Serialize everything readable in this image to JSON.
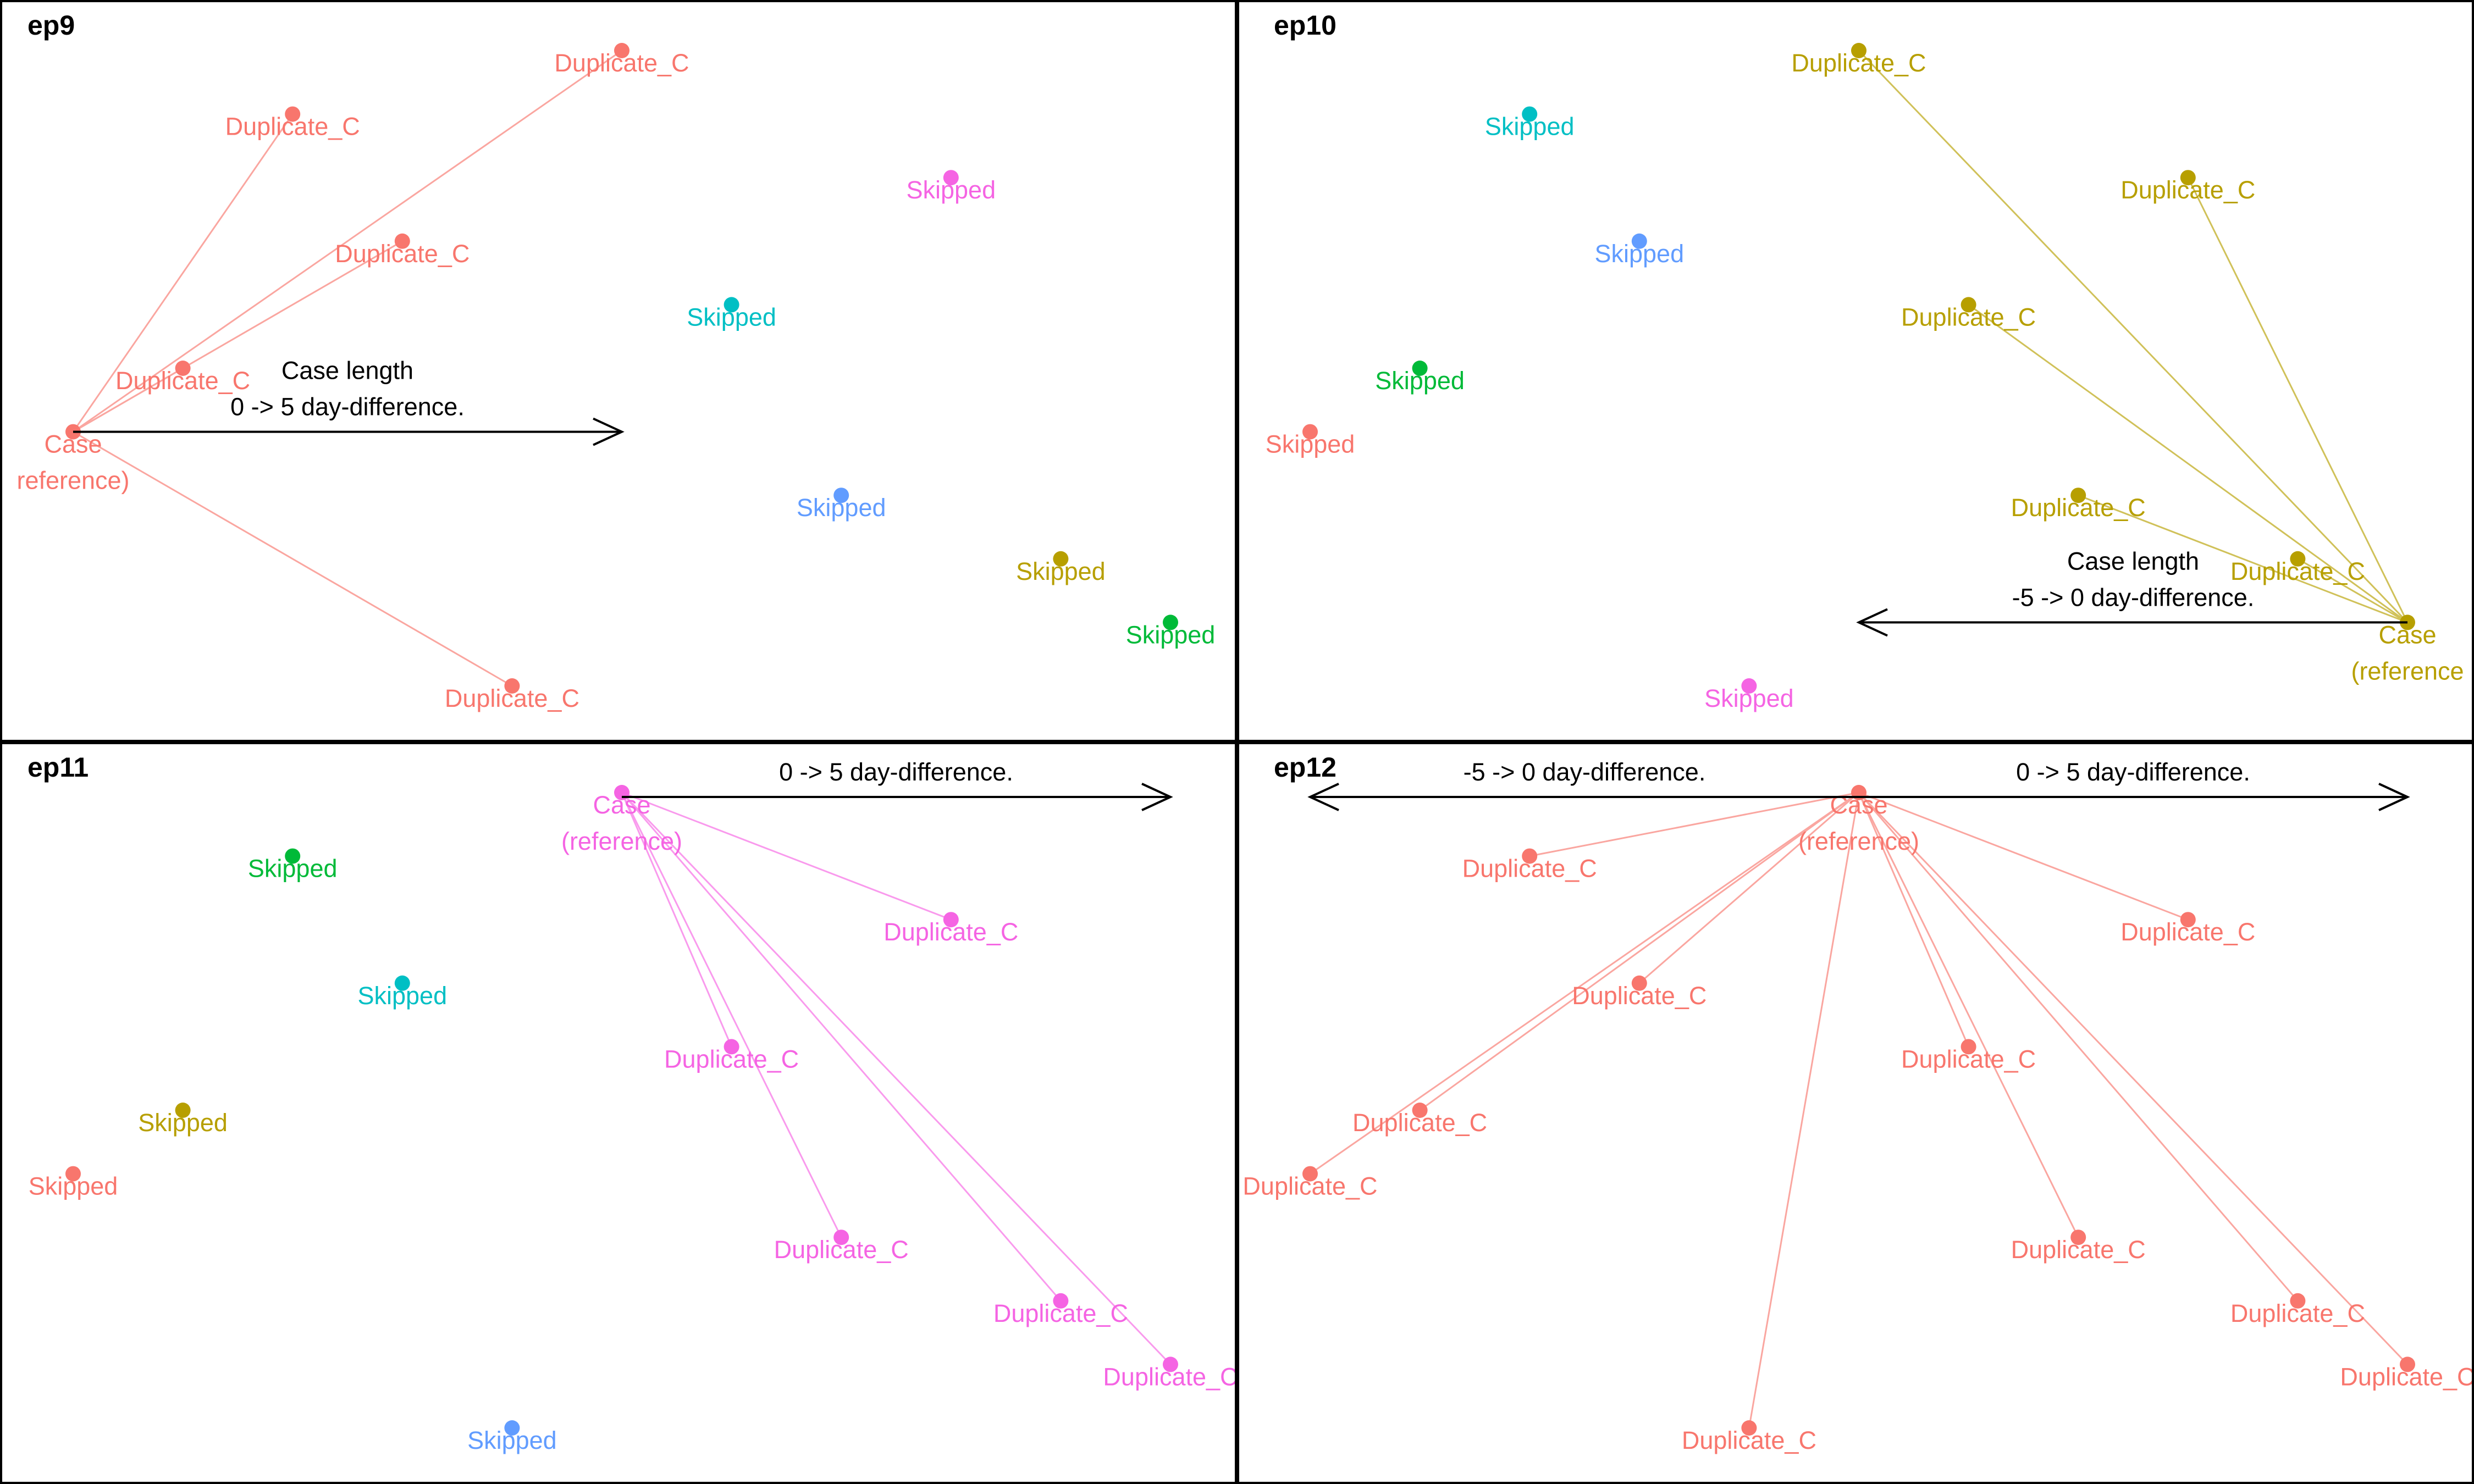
{
  "colors": {
    "salmon": "#F8766D",
    "olive": "#B79F00",
    "green": "#00BA38",
    "cyan": "#00BFC4",
    "blue": "#619CFF",
    "magenta": "#F564E3"
  },
  "panels": [
    {
      "id": "ep9",
      "title": "ep9",
      "reference": "p0",
      "points": [
        {
          "id": "p0",
          "gx": 0,
          "gy": 6,
          "color": "salmon",
          "label": "Case\nreference)"
        },
        {
          "id": "p1",
          "gx": 1,
          "gy": 5,
          "color": "salmon",
          "label": "Duplicate_C"
        },
        {
          "id": "p2",
          "gx": 2,
          "gy": 1,
          "color": "salmon",
          "label": "Duplicate_C"
        },
        {
          "id": "p3",
          "gx": 3,
          "gy": 3,
          "color": "salmon",
          "label": "Duplicate_C"
        },
        {
          "id": "p4",
          "gx": 4,
          "gy": 10,
          "color": "salmon",
          "label": "Duplicate_C"
        },
        {
          "id": "p5",
          "gx": 5,
          "gy": 0,
          "color": "salmon",
          "label": "Duplicate_C"
        },
        {
          "id": "p6",
          "gx": 6,
          "gy": 4,
          "color": "cyan",
          "label": "Skipped"
        },
        {
          "id": "p7",
          "gx": 7,
          "gy": 7,
          "color": "blue",
          "label": "Skipped"
        },
        {
          "id": "p8",
          "gx": 8,
          "gy": 2,
          "color": "magenta",
          "label": "Skipped"
        },
        {
          "id": "p9",
          "gx": 9,
          "gy": 8,
          "color": "olive",
          "label": "Skipped"
        },
        {
          "id": "p10",
          "gx": 10,
          "gy": 9,
          "color": "green",
          "label": "Skipped"
        }
      ],
      "links": [
        "p1",
        "p2",
        "p3",
        "p4",
        "p5"
      ],
      "arrows": [
        {
          "from_gx": 0,
          "to_gx": 5,
          "gy": 6,
          "lines": [
            "Case length",
            "0 -> 5 day-difference."
          ]
        }
      ]
    },
    {
      "id": "ep10",
      "title": "ep10",
      "reference": "q10",
      "points": [
        {
          "id": "q0",
          "gx": 0,
          "gy": 6,
          "color": "salmon",
          "label": "Skipped"
        },
        {
          "id": "q1",
          "gx": 1,
          "gy": 5,
          "color": "green",
          "label": "Skipped"
        },
        {
          "id": "q2",
          "gx": 2,
          "gy": 1,
          "color": "cyan",
          "label": "Skipped"
        },
        {
          "id": "q3",
          "gx": 3,
          "gy": 3,
          "color": "blue",
          "label": "Skipped"
        },
        {
          "id": "q4",
          "gx": 4,
          "gy": 10,
          "color": "magenta",
          "label": "Skipped"
        },
        {
          "id": "q5",
          "gx": 5,
          "gy": 0,
          "color": "olive",
          "label": "Duplicate_C"
        },
        {
          "id": "q6",
          "gx": 6,
          "gy": 4,
          "color": "olive",
          "label": "Duplicate_C"
        },
        {
          "id": "q7",
          "gx": 7,
          "gy": 7,
          "color": "olive",
          "label": "Duplicate_C"
        },
        {
          "id": "q8",
          "gx": 8,
          "gy": 2,
          "color": "olive",
          "label": "Duplicate_C"
        },
        {
          "id": "q9",
          "gx": 9,
          "gy": 8,
          "color": "olive",
          "label": "Duplicate_C"
        },
        {
          "id": "q10",
          "gx": 10,
          "gy": 9,
          "color": "olive",
          "label": "Case\n(reference"
        }
      ],
      "links": [
        "q5",
        "q6",
        "q7",
        "q8",
        "q9"
      ],
      "arrows": [
        {
          "from_gx": 10,
          "to_gx": 5,
          "gy": 9,
          "lines": [
            "Case length",
            "-5 -> 0 day-difference."
          ]
        }
      ]
    },
    {
      "id": "ep11",
      "title": "ep11",
      "reference": "r5",
      "points": [
        {
          "id": "r0",
          "gx": 0,
          "gy": 6,
          "color": "salmon",
          "label": "Skipped"
        },
        {
          "id": "r1",
          "gx": 1,
          "gy": 5,
          "color": "olive",
          "label": "Skipped"
        },
        {
          "id": "r2",
          "gx": 2,
          "gy": 1,
          "color": "green",
          "label": "Skipped"
        },
        {
          "id": "r3",
          "gx": 3,
          "gy": 3,
          "color": "cyan",
          "label": "Skipped"
        },
        {
          "id": "r4",
          "gx": 4,
          "gy": 10,
          "color": "blue",
          "label": "Skipped"
        },
        {
          "id": "r5",
          "gx": 5,
          "gy": 0,
          "color": "magenta",
          "label": "Case\n(reference)"
        },
        {
          "id": "r6",
          "gx": 6,
          "gy": 4,
          "color": "magenta",
          "label": "Duplicate_C"
        },
        {
          "id": "r7",
          "gx": 7,
          "gy": 7,
          "color": "magenta",
          "label": "Duplicate_C"
        },
        {
          "id": "r8",
          "gx": 8,
          "gy": 2,
          "color": "magenta",
          "label": "Duplicate_C"
        },
        {
          "id": "r9",
          "gx": 9,
          "gy": 8,
          "color": "magenta",
          "label": "Duplicate_C"
        },
        {
          "id": "r10",
          "gx": 10,
          "gy": 9,
          "color": "magenta",
          "label": "Duplicate_C"
        }
      ],
      "links": [
        "r6",
        "r7",
        "r8",
        "r9",
        "r10"
      ],
      "arrows": [
        {
          "from_gx": 5,
          "to_gx": 10,
          "gy": 0,
          "lines": [
            "0 -> 5 day-difference."
          ]
        }
      ]
    },
    {
      "id": "ep12",
      "title": "ep12",
      "reference": "s5",
      "points": [
        {
          "id": "s0",
          "gx": 0,
          "gy": 6,
          "color": "salmon",
          "label": "Duplicate_C"
        },
        {
          "id": "s1",
          "gx": 1,
          "gy": 5,
          "color": "salmon",
          "label": "Duplicate_C"
        },
        {
          "id": "s2",
          "gx": 2,
          "gy": 1,
          "color": "salmon",
          "label": "Duplicate_C"
        },
        {
          "id": "s3",
          "gx": 3,
          "gy": 3,
          "color": "salmon",
          "label": "Duplicate_C"
        },
        {
          "id": "s4",
          "gx": 4,
          "gy": 10,
          "color": "salmon",
          "label": "Duplicate_C"
        },
        {
          "id": "s5",
          "gx": 5,
          "gy": 0,
          "color": "salmon",
          "label": "Case\n(reference)"
        },
        {
          "id": "s6",
          "gx": 6,
          "gy": 4,
          "color": "salmon",
          "label": "Duplicate_C"
        },
        {
          "id": "s7",
          "gx": 7,
          "gy": 7,
          "color": "salmon",
          "label": "Duplicate_C"
        },
        {
          "id": "s8",
          "gx": 8,
          "gy": 2,
          "color": "salmon",
          "label": "Duplicate_C"
        },
        {
          "id": "s9",
          "gx": 9,
          "gy": 8,
          "color": "salmon",
          "label": "Duplicate_C"
        },
        {
          "id": "s10",
          "gx": 10,
          "gy": 9,
          "color": "salmon",
          "label": "Duplicate_C"
        }
      ],
      "links": [
        "s0",
        "s1",
        "s2",
        "s3",
        "s4",
        "s6",
        "s7",
        "s8",
        "s9",
        "s10"
      ],
      "arrows": [
        {
          "from_gx": 5,
          "to_gx": 0,
          "gy": 0,
          "lines": [
            "-5 -> 0 day-difference."
          ]
        },
        {
          "from_gx": 5,
          "to_gx": 10,
          "gy": 0,
          "lines": [
            "0 -> 5 day-difference."
          ]
        }
      ]
    }
  ]
}
